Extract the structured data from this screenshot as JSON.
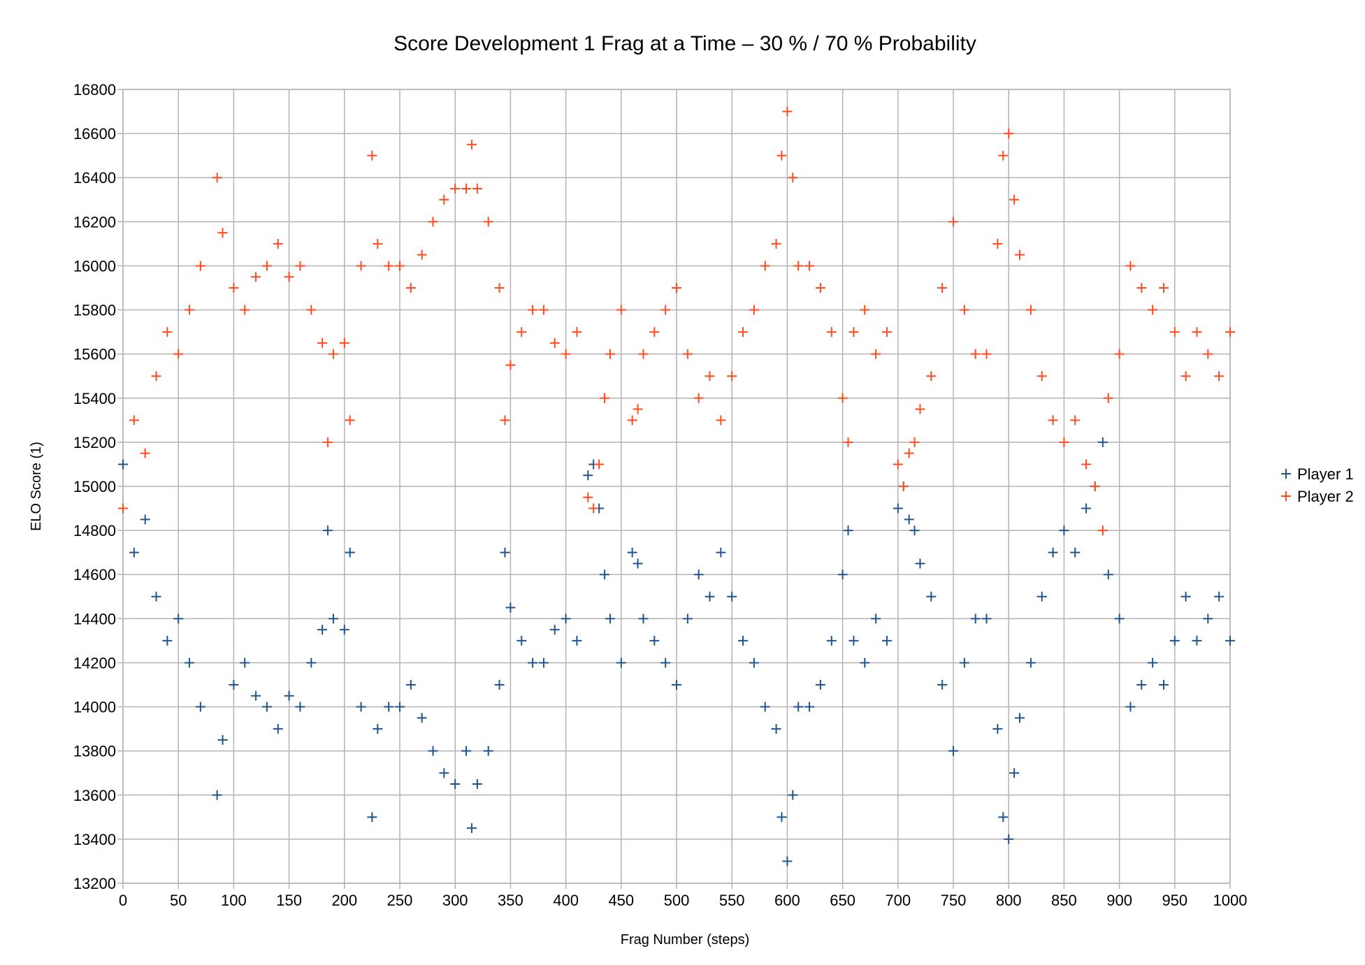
{
  "chart_data": {
    "type": "scatter",
    "title": "Score Development 1 Frag at a Time – 30 % / 70 % Probability",
    "xlabel": "Frag Number (steps)",
    "ylabel": "ELO Score (1)",
    "xlim": [
      0,
      1000
    ],
    "ylim": [
      13200,
      16800
    ],
    "xticks": [
      "0",
      "50",
      "100",
      "150",
      "200",
      "250",
      "300",
      "350",
      "400",
      "450",
      "500",
      "550",
      "600",
      "650",
      "700",
      "750",
      "800",
      "850",
      "900",
      "950",
      "1000"
    ],
    "yticks": [
      "13200",
      "13400",
      "13600",
      "13800",
      "14000",
      "14200",
      "14400",
      "14600",
      "14800",
      "15000",
      "15200",
      "15400",
      "15600",
      "15800",
      "16000",
      "16200",
      "16400",
      "16600",
      "16800"
    ],
    "grid": true,
    "legend": "right",
    "marker": "plus",
    "series": [
      {
        "name": "Player 1",
        "color": "#1f5590",
        "x": [
          0,
          10,
          20,
          30,
          40,
          50,
          60,
          70,
          85,
          90,
          100,
          110,
          120,
          130,
          140,
          150,
          160,
          170,
          180,
          185,
          190,
          200,
          205,
          215,
          225,
          230,
          240,
          250,
          260,
          270,
          280,
          290,
          300,
          310,
          315,
          320,
          330,
          340,
          345,
          350,
          360,
          370,
          380,
          390,
          400,
          410,
          420,
          425,
          430,
          435,
          440,
          450,
          460,
          465,
          470,
          480,
          490,
          500,
          510,
          520,
          530,
          540,
          550,
          560,
          570,
          580,
          590,
          595,
          600,
          605,
          610,
          620,
          630,
          640,
          650,
          655,
          660,
          670,
          680,
          690,
          700,
          705,
          710,
          715,
          720,
          730,
          740,
          750,
          760,
          770,
          780,
          790,
          795,
          800,
          805,
          810,
          820,
          830,
          840,
          850,
          860,
          870,
          878,
          885,
          890,
          900,
          910,
          920,
          930,
          940,
          950,
          960,
          970,
          980,
          990,
          1000
        ],
        "y": [
          15100,
          14700,
          14850,
          14500,
          14300,
          14400,
          14200,
          14000,
          13600,
          13850,
          14100,
          14200,
          14050,
          14000,
          13900,
          14050,
          14000,
          14200,
          14350,
          14800,
          14400,
          14350,
          14700,
          14000,
          13500,
          13900,
          14000,
          14000,
          14100,
          13950,
          13800,
          13700,
          13650,
          13800,
          13450,
          13650,
          13800,
          14100,
          14700,
          14450,
          14300,
          14200,
          14200,
          14350,
          14400,
          14300,
          15050,
          15100,
          14900,
          14600,
          14400,
          14200,
          14700,
          14650,
          14400,
          14300,
          14200,
          14100,
          14400,
          14600,
          14500,
          14700,
          14500,
          14300,
          14200,
          14000,
          13900,
          13500,
          13300,
          13600,
          14000,
          14000,
          14100,
          14300,
          14600,
          14800,
          14300,
          14200,
          14400,
          14300,
          14900,
          15000,
          14850,
          14800,
          14650,
          14500,
          14100,
          13800,
          14200,
          14400,
          14400,
          13900,
          13500,
          13400,
          13700,
          13950,
          14200,
          14500,
          14700,
          14800,
          14700,
          14900,
          15000,
          15200,
          14600,
          14400,
          14000,
          14100,
          14200,
          14100,
          14300,
          14500,
          14300,
          14400,
          14500,
          14300
        ]
      },
      {
        "name": "Player 2",
        "color": "#ff4b1f",
        "x": [
          0,
          10,
          20,
          30,
          40,
          50,
          60,
          70,
          85,
          90,
          100,
          110,
          120,
          130,
          140,
          150,
          160,
          170,
          180,
          185,
          190,
          200,
          205,
          215,
          225,
          230,
          240,
          250,
          260,
          270,
          280,
          290,
          300,
          310,
          315,
          320,
          330,
          340,
          345,
          350,
          360,
          370,
          380,
          390,
          400,
          410,
          420,
          425,
          430,
          435,
          440,
          450,
          460,
          465,
          470,
          480,
          490,
          500,
          510,
          520,
          530,
          540,
          550,
          560,
          570,
          580,
          590,
          595,
          600,
          605,
          610,
          620,
          630,
          640,
          650,
          655,
          660,
          670,
          680,
          690,
          700,
          705,
          710,
          715,
          720,
          730,
          740,
          750,
          760,
          770,
          780,
          790,
          795,
          800,
          805,
          810,
          820,
          830,
          840,
          850,
          860,
          870,
          878,
          885,
          890,
          900,
          910,
          920,
          930,
          940,
          950,
          960,
          970,
          980,
          990,
          1000
        ],
        "y": [
          14900,
          15300,
          15150,
          15500,
          15700,
          15600,
          15800,
          16000,
          16400,
          16150,
          15900,
          15800,
          15950,
          16000,
          16100,
          15950,
          16000,
          15800,
          15650,
          15200,
          15600,
          15650,
          15300,
          16000,
          16500,
          16100,
          16000,
          16000,
          15900,
          16050,
          16200,
          16300,
          16350,
          16350,
          16550,
          16350,
          16200,
          15900,
          15300,
          15550,
          15700,
          15800,
          15800,
          15650,
          15600,
          15700,
          14950,
          14900,
          15100,
          15400,
          15600,
          15800,
          15300,
          15350,
          15600,
          15700,
          15800,
          15900,
          15600,
          15400,
          15500,
          15300,
          15500,
          15700,
          15800,
          16000,
          16100,
          16500,
          16700,
          16400,
          16000,
          16000,
          15900,
          15700,
          15400,
          15200,
          15700,
          15800,
          15600,
          15700,
          15100,
          15000,
          15150,
          15200,
          15350,
          15500,
          15900,
          16200,
          15800,
          15600,
          15600,
          16100,
          16500,
          16600,
          16300,
          16050,
          15800,
          15500,
          15300,
          15200,
          15300,
          15100,
          15000,
          14800,
          15400,
          15600,
          16000,
          15900,
          15800,
          15900,
          15700,
          15500,
          15700,
          15600,
          15500,
          15700
        ]
      }
    ]
  }
}
